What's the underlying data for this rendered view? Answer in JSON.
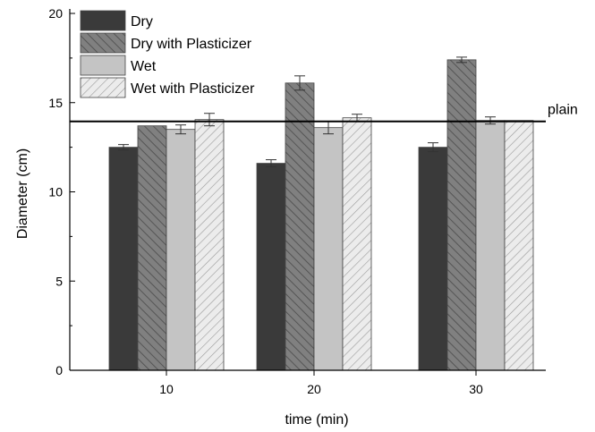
{
  "chart_data": {
    "type": "bar",
    "categories": [
      "10",
      "20",
      "30"
    ],
    "xlabel": "time (min)",
    "ylabel": "Diameter (cm)",
    "ylim": [
      0,
      20
    ],
    "yticks": [
      0,
      5,
      10,
      15,
      20
    ],
    "grid": false,
    "legend_position": "top-left",
    "series": [
      {
        "name": "Dry",
        "values": [
          12.5,
          11.6,
          12.5
        ],
        "errors": [
          0.15,
          0.2,
          0.25
        ],
        "color": "#3a3a3a",
        "pattern": "solid"
      },
      {
        "name": "Dry with Plasticizer",
        "values": [
          13.7,
          16.1,
          17.4
        ],
        "errors": [
          0.0,
          0.4,
          0.15
        ],
        "color": "#808080",
        "pattern": "hatch-dark"
      },
      {
        "name": "Wet",
        "values": [
          13.5,
          13.6,
          14.0
        ],
        "errors": [
          0.25,
          0.35,
          0.2
        ],
        "color": "#c4c4c4",
        "pattern": "solid"
      },
      {
        "name": "Wet with Plasticizer",
        "values": [
          14.05,
          14.15,
          14.0
        ],
        "errors": [
          0.35,
          0.2,
          0.0
        ],
        "color": "#e8e8e8",
        "pattern": "hatch-light"
      }
    ],
    "reference_line": {
      "label": "plain",
      "value": 13.95
    }
  }
}
